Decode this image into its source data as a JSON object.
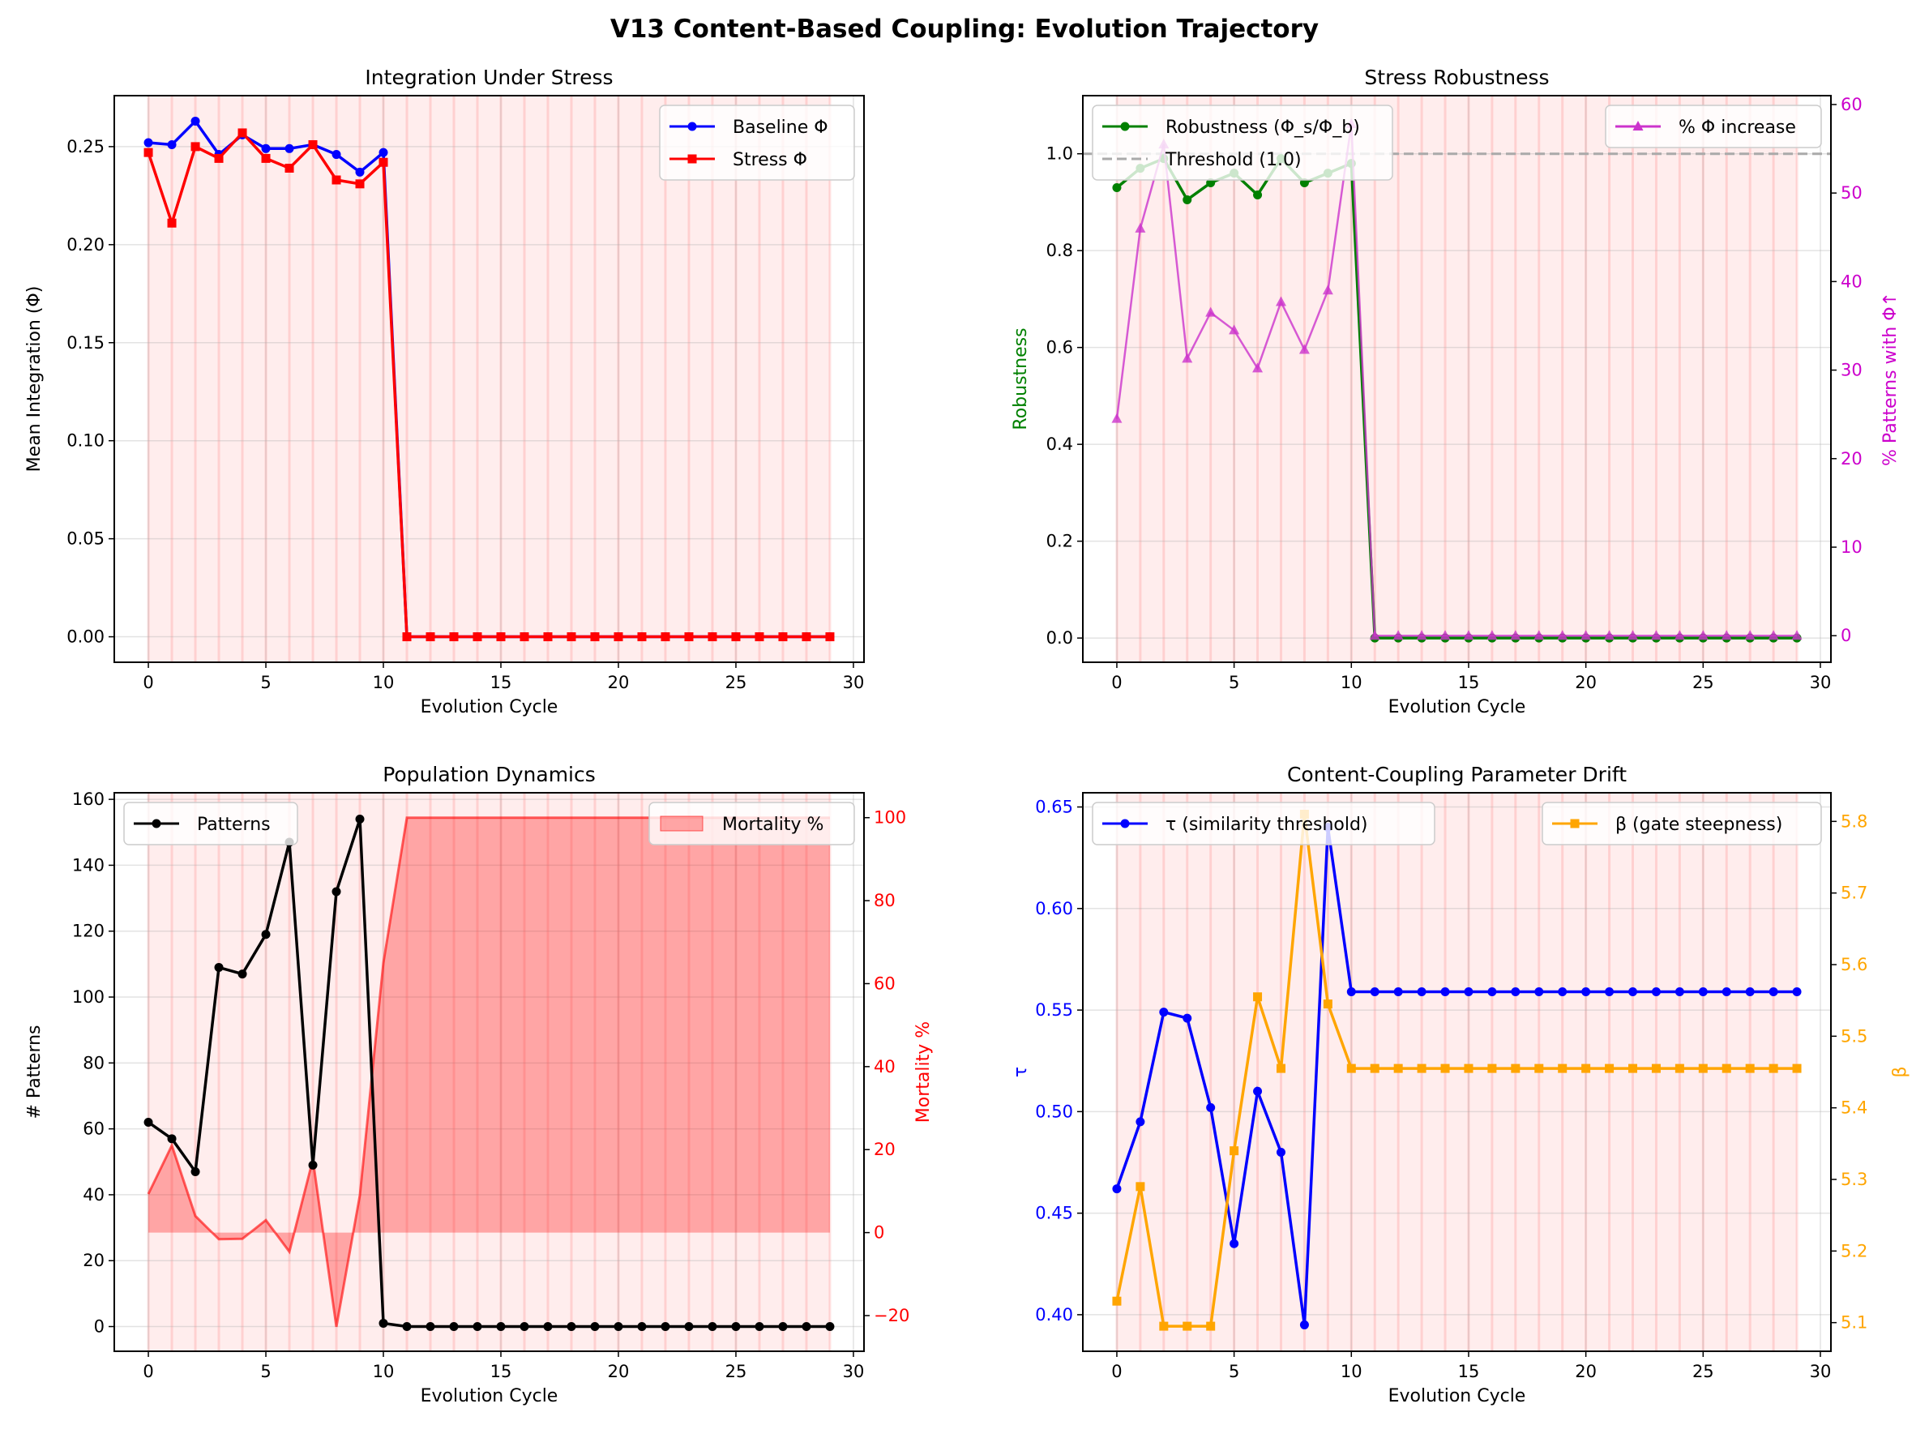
{
  "suptitle": "V13 Content-Based Coupling: Evolution Trajectory",
  "chart_data": [
    {
      "type": "line",
      "title": "Integration Under Stress",
      "xlabel": "Evolution Cycle",
      "ylabel": "Mean Integration (Φ)",
      "xlim": [
        -1.45,
        30.45
      ],
      "ylim": [
        -0.013,
        0.276
      ],
      "xticks": [
        0,
        5,
        10,
        15,
        20,
        25,
        30
      ],
      "yticks": [
        0.0,
        0.05,
        0.1,
        0.15,
        0.2,
        0.25
      ],
      "ytick_decimals": 2,
      "grid": true,
      "stress_shading": true,
      "legend": "top-right",
      "x": [
        0,
        1,
        2,
        3,
        4,
        5,
        6,
        7,
        8,
        9,
        10,
        11,
        12,
        13,
        14,
        15,
        16,
        17,
        18,
        19,
        20,
        21,
        22,
        23,
        24,
        25,
        26,
        27,
        28,
        29
      ],
      "series": [
        {
          "name": "Baseline Φ",
          "color": "#0000ff",
          "marker": "circle",
          "axis": "left",
          "values": [
            0.252,
            0.251,
            0.263,
            0.246,
            0.256,
            0.249,
            0.249,
            0.251,
            0.246,
            0.237,
            0.247,
            0,
            0,
            0,
            0,
            0,
            0,
            0,
            0,
            0,
            0,
            0,
            0,
            0,
            0,
            0,
            0,
            0,
            0,
            0
          ]
        },
        {
          "name": "Stress Φ",
          "color": "#ff0000",
          "marker": "square",
          "axis": "left",
          "values": [
            0.247,
            0.211,
            0.25,
            0.244,
            0.257,
            0.244,
            0.239,
            0.251,
            0.233,
            0.231,
            0.242,
            0,
            0,
            0,
            0,
            0,
            0,
            0,
            0,
            0,
            0,
            0,
            0,
            0,
            0,
            0,
            0,
            0,
            0,
            0
          ]
        }
      ]
    },
    {
      "type": "line",
      "title": "Stress Robustness",
      "xlabel": "Evolution Cycle",
      "ylabel": "Robustness",
      "ylabel_color": "#008000",
      "y2label": "% Patterns with Φ↑",
      "y2label_color": "#cc00cc",
      "xlim": [
        -1.45,
        30.45
      ],
      "ylim": [
        -0.05,
        1.12
      ],
      "y2lim": [
        -3,
        61
      ],
      "xticks": [
        0,
        5,
        10,
        15,
        20,
        25,
        30
      ],
      "yticks": [
        0.0,
        0.2,
        0.4,
        0.6,
        0.8,
        1.0
      ],
      "ytick_decimals": 1,
      "y2ticks": [
        0,
        10,
        20,
        30,
        40,
        50,
        60
      ],
      "grid": true,
      "stress_shading": true,
      "hline": {
        "name": "Threshold (1.0)",
        "value": 1.0,
        "color": "#aaaaaa"
      },
      "legend": "top-left",
      "legend2": "top-right",
      "x": [
        0,
        1,
        2,
        3,
        4,
        5,
        6,
        7,
        8,
        9,
        10,
        11,
        12,
        13,
        14,
        15,
        16,
        17,
        18,
        19,
        20,
        21,
        22,
        23,
        24,
        25,
        26,
        27,
        28,
        29
      ],
      "series": [
        {
          "name": "Robustness (Φ_s/Φ_b)",
          "color": "#008000",
          "marker": "circle",
          "axis": "left",
          "values": [
            0.93,
            0.97,
            0.99,
            0.905,
            0.94,
            0.96,
            0.915,
            0.99,
            0.94,
            0.96,
            0.98,
            0,
            0,
            0,
            0,
            0,
            0,
            0,
            0,
            0,
            0,
            0,
            0,
            0,
            0,
            0,
            0,
            0,
            0,
            0
          ]
        },
        {
          "name": "% Φ increase",
          "color": "#cc33cc",
          "marker": "triangle",
          "axis": "right",
          "values": [
            24.5,
            46,
            55.5,
            31.3,
            36.5,
            34.5,
            30.2,
            37.7,
            32.3,
            39,
            57.8,
            0,
            0,
            0,
            0,
            0,
            0,
            0,
            0,
            0,
            0,
            0,
            0,
            0,
            0,
            0,
            0,
            0,
            0,
            0
          ]
        }
      ]
    },
    {
      "type": "line",
      "title": "Population Dynamics",
      "xlabel": "Evolution Cycle",
      "ylabel": "# Patterns",
      "y2label": "Mortality %",
      "y2label_color": "#ff0000",
      "xlim": [
        -1.45,
        30.45
      ],
      "ylim": [
        -7.5,
        162
      ],
      "y2lim": [
        -28.6,
        106
      ],
      "xticks": [
        0,
        5,
        10,
        15,
        20,
        25,
        30
      ],
      "yticks": [
        0,
        20,
        40,
        60,
        80,
        100,
        120,
        140,
        160
      ],
      "ytick_decimals": 0,
      "y2ticks": [
        -20,
        0,
        20,
        40,
        60,
        80,
        100
      ],
      "y2tick_color": "#ff0000",
      "grid": true,
      "stress_shading": true,
      "legend": "top-left",
      "legend2": "top-right",
      "x": [
        0,
        1,
        2,
        3,
        4,
        5,
        6,
        7,
        8,
        9,
        10,
        11,
        12,
        13,
        14,
        15,
        16,
        17,
        18,
        19,
        20,
        21,
        22,
        23,
        24,
        25,
        26,
        27,
        28,
        29
      ],
      "series": [
        {
          "name": "Patterns",
          "color": "#000000",
          "marker": "circle",
          "axis": "left",
          "values": [
            62,
            57,
            47,
            109,
            107,
            119,
            147,
            49,
            132,
            154,
            1,
            0,
            0,
            0,
            0,
            0,
            0,
            0,
            0,
            0,
            0,
            0,
            0,
            0,
            0,
            0,
            0,
            0,
            0,
            0
          ]
        },
        {
          "name": "Mortality %",
          "color": "#ff0000",
          "marker": "area",
          "axis": "right",
          "values": [
            9.3,
            21,
            4,
            -1.6,
            -1.5,
            3,
            -4.6,
            17.6,
            -22.7,
            9,
            65,
            100,
            100,
            100,
            100,
            100,
            100,
            100,
            100,
            100,
            100,
            100,
            100,
            100,
            100,
            100,
            100,
            100,
            100,
            100
          ]
        }
      ]
    },
    {
      "type": "line",
      "title": "Content-Coupling Parameter Drift",
      "xlabel": "Evolution Cycle",
      "ylabel": "τ",
      "ylabel_color": "#0000ff",
      "ytick_color": "#0000ff",
      "y2label": "β",
      "y2label_color": "#ffa500",
      "y2tick_color": "#ffa500",
      "xlim": [
        -1.45,
        30.45
      ],
      "ylim": [
        0.382,
        0.657
      ],
      "y2lim": [
        5.06,
        5.84
      ],
      "xticks": [
        0,
        5,
        10,
        15,
        20,
        25,
        30
      ],
      "yticks": [
        0.4,
        0.45,
        0.5,
        0.55,
        0.6,
        0.65
      ],
      "ytick_decimals": 2,
      "y2ticks": [
        5.1,
        5.2,
        5.3,
        5.4,
        5.5,
        5.6,
        5.7,
        5.8
      ],
      "y2tick_decimals": 1,
      "grid": true,
      "stress_shading": true,
      "legend": "top-left",
      "legend2": "top-right",
      "x": [
        0,
        1,
        2,
        3,
        4,
        5,
        6,
        7,
        8,
        9,
        10,
        11,
        12,
        13,
        14,
        15,
        16,
        17,
        18,
        19,
        20,
        21,
        22,
        23,
        24,
        25,
        26,
        27,
        28,
        29
      ],
      "series": [
        {
          "name": "τ (similarity threshold)",
          "color": "#0000ff",
          "marker": "circle",
          "axis": "left",
          "values": [
            0.462,
            0.495,
            0.549,
            0.546,
            0.502,
            0.435,
            0.51,
            0.48,
            0.395,
            0.64,
            0.559,
            0.559,
            0.559,
            0.559,
            0.559,
            0.559,
            0.559,
            0.559,
            0.559,
            0.559,
            0.559,
            0.559,
            0.559,
            0.559,
            0.559,
            0.559,
            0.559,
            0.559,
            0.559,
            0.559
          ]
        },
        {
          "name": "β (gate steepness)",
          "color": "#ffa500",
          "marker": "square",
          "axis": "right",
          "values": [
            5.13,
            5.29,
            5.095,
            5.095,
            5.095,
            5.34,
            5.555,
            5.455,
            5.81,
            5.545,
            5.455,
            5.455,
            5.455,
            5.455,
            5.455,
            5.455,
            5.455,
            5.455,
            5.455,
            5.455,
            5.455,
            5.455,
            5.455,
            5.455,
            5.455,
            5.455,
            5.455,
            5.455,
            5.455,
            5.455
          ]
        }
      ]
    }
  ]
}
